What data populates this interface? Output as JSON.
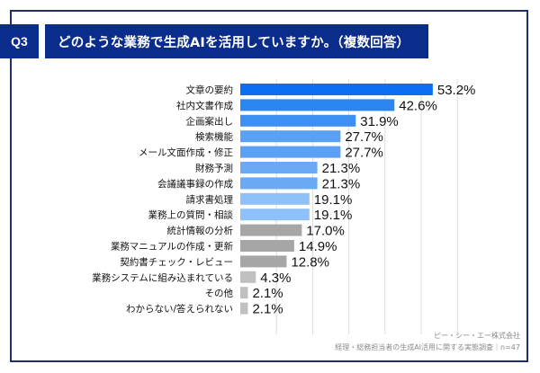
{
  "header": {
    "question_number": "Q3",
    "title": "どのような業務で生成AIを活用していますか。（複数回答）"
  },
  "footer": {
    "company": "ピー・シー・エー株式会社",
    "source": "経理・総務担当者の生成AI活用に関する実態調査｜n=47"
  },
  "chart_data": {
    "type": "bar",
    "orientation": "horizontal",
    "title": "どのような業務で生成AIを活用していますか。（複数回答）",
    "xlabel": "",
    "ylabel": "",
    "xlim": [
      0,
      60
    ],
    "grid": true,
    "value_suffix": "%",
    "categories": [
      "文章の要約",
      "社内文書作成",
      "企画案出し",
      "検索機能",
      "メール文面作成・修正",
      "財務予測",
      "会議議事録の作成",
      "請求書処理",
      "業務上の質問・相談",
      "統計情報の分析",
      "業務マニュアルの作成・更新",
      "契約書チェック・レビュー",
      "業務システムに組み込まれている",
      "その他",
      "わからない/答えられない"
    ],
    "values": [
      53.2,
      42.6,
      31.9,
      27.7,
      27.7,
      21.3,
      21.3,
      19.1,
      19.1,
      17.0,
      14.9,
      12.8,
      4.3,
      2.1,
      2.1
    ],
    "value_labels": [
      "53.2%",
      "42.6%",
      "31.9%",
      "27.7%",
      "27.7%",
      "21.3%",
      "21.3%",
      "19.1%",
      "19.1%",
      "17.0%",
      "14.9%",
      "12.8%",
      "4.3%",
      "2.1%",
      "2.1%"
    ],
    "bar_colors": [
      "#0a6ff0",
      "#2b86f2",
      "#3d8ff2",
      "#5aa0f4",
      "#5aa0f4",
      "#6aaaf5",
      "#6aaaf5",
      "#8ec1f8",
      "#8ec1f8",
      "#a6a6a6",
      "#a6a6a6",
      "#a6a6a6",
      "#c0c0c0",
      "#c0c0c0",
      "#c0c0c0"
    ],
    "gridline_color": "#dcdcdc"
  }
}
